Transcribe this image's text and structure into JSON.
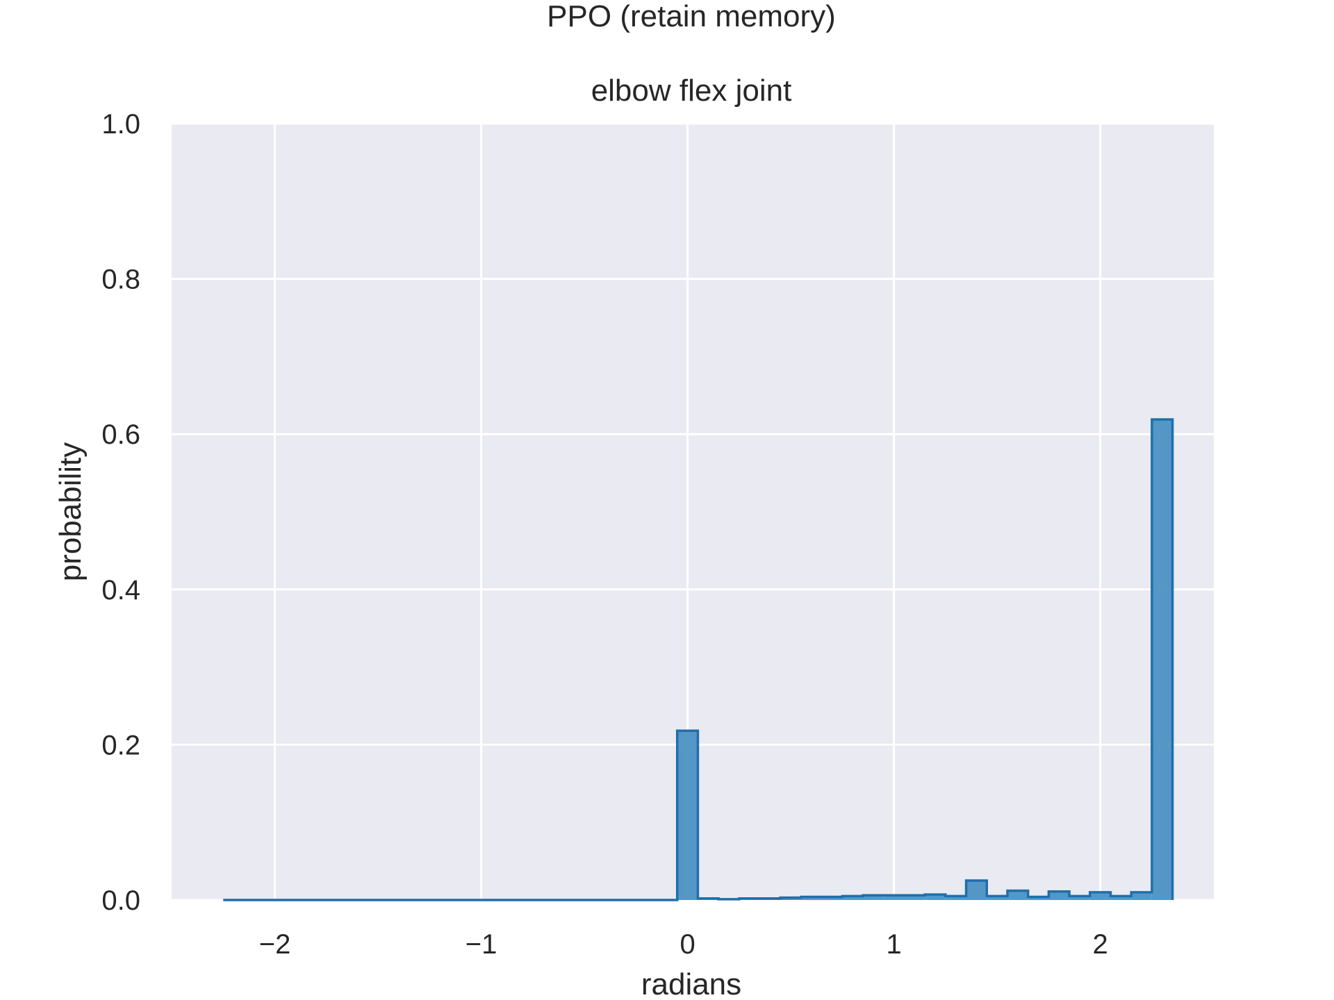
{
  "chart_data": {
    "type": "bar",
    "subtype": "step-histogram",
    "title": "PPO (retain memory)",
    "subtitle": "elbow flex joint",
    "xlabel": "radians",
    "ylabel": "probability",
    "xlim": [
      -2.5,
      2.55
    ],
    "ylim": [
      0.0,
      1.0
    ],
    "xticks": [
      -2,
      -1,
      0,
      1,
      2
    ],
    "xtick_labels": [
      "−2",
      "−1",
      "0",
      "1",
      "2"
    ],
    "yticks": [
      0.0,
      0.2,
      0.4,
      0.6,
      0.8,
      1.0
    ],
    "ytick_labels": [
      "0.0",
      "0.2",
      "0.4",
      "0.6",
      "0.8",
      "1.0"
    ],
    "grid": true,
    "style": "seaborn-darkgrid",
    "colors": {
      "bar_fill": "#4c92c3",
      "bar_edge": "#1f6fab",
      "axes_bg": "#eaeaf2",
      "grid": "#ffffff"
    },
    "bins": {
      "start": -2.25,
      "width": 0.1,
      "values": [
        0,
        0,
        0,
        0,
        0,
        0,
        0,
        0,
        0,
        0,
        0,
        0,
        0,
        0,
        0,
        0,
        0,
        0,
        0,
        0,
        0,
        0,
        0.218,
        0.002,
        0.001,
        0.002,
        0.002,
        0.003,
        0.004,
        0.004,
        0.005,
        0.006,
        0.006,
        0.006,
        0.007,
        0.005,
        0.025,
        0.005,
        0.012,
        0.004,
        0.011,
        0.005,
        0.01,
        0.005,
        0.01,
        0.619
      ]
    }
  }
}
